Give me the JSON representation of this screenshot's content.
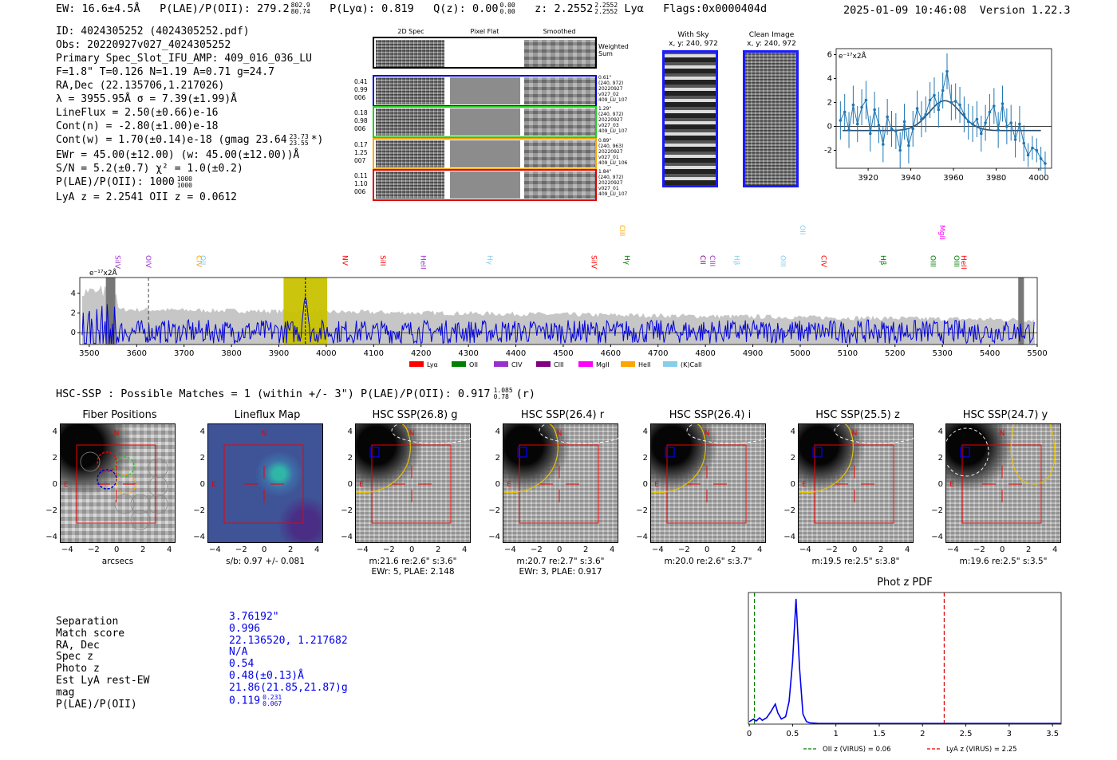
{
  "header": {
    "ew": "EW: 16.6±4.5Å",
    "plae_label": "P(LAE)/P(OII): 279.2",
    "plae_hi": "802.9",
    "plae_lo": "80.74",
    "plya": "P(Lyα): 0.819",
    "qz_label": "Q(z): 0.00",
    "qz_hi": "0.00",
    "qz_lo": "0.00",
    "z_label": "z: 2.2552",
    "z_hi": "2.2552",
    "z_lo": "2.2552",
    "z_line": "Lyα",
    "flags": "Flags:0x0000404d",
    "datetime": "2025-01-09 10:46:08",
    "version": "Version 1.22.3"
  },
  "info": {
    "id": "ID: 4024305252 (4024305252.pdf)",
    "obs": "Obs: 20220927v027_4024305252",
    "primary": "Primary Spec_Slot_IFU_AMP: 409_016_036_LU",
    "fit": "F=1.8\"  T=0.126  N=1.19  A=0.71  g=24.7",
    "radec": "RA,Dec (22.135706,1.217026)",
    "lambda": "λ = 3955.95Å  σ = 7.39(±1.99)Å",
    "lineflux": "LineFlux = 2.50(±0.66)e-16",
    "contn": "Cont(n) = -2.80(±1.00)e-18",
    "contw": "Cont(w) = 1.70(±0.14)e-18 (gmag 23.64",
    "contw_hi": "23.73",
    "contw_lo": "23.55",
    "contw_end": "*)",
    "ewr": "EWr = 45.00(±12.00) (w: 45.00(±12.00))Å",
    "sn": "S/N = 5.2(±0.7)  χ² = 1.0(±0.2)",
    "plae": "P(LAE)/P(OII): 1000",
    "plae_hi": "1000",
    "plae_lo": "1000",
    "lyaz": "LyA z = 2.2541   OII z = 0.0612"
  },
  "spec2d": {
    "col_headers": [
      "2D Spec",
      "Pixel Flat",
      "Smoothed"
    ],
    "weighted": "Weighted Sum",
    "rows": [
      {
        "left": [
          "0.41",
          "0.99",
          "006"
        ],
        "right": [
          "0.61\"",
          "(240, 972)",
          "20220927",
          "v027_02",
          "409_LU_107"
        ],
        "color": "#0000cc"
      },
      {
        "left": [
          "0.18",
          "0.98",
          "006"
        ],
        "right": [
          "1.29\"",
          "(240, 972)",
          "20220927",
          "v027_03",
          "409_LU_107"
        ],
        "color": "#22cc22"
      },
      {
        "left": [
          "0.17",
          "1.25",
          "007"
        ],
        "right": [
          "0.89\"",
          "(240, 963)",
          "20220927",
          "v027_01",
          "409_LU_106"
        ],
        "color": "#ffa500"
      },
      {
        "left": [
          "0.11",
          "1.10",
          "006"
        ],
        "right": [
          "1.84\"",
          "(240, 972)",
          "20220927",
          "v027_01",
          "409_LU_107"
        ],
        "color": "#dd0000"
      }
    ]
  },
  "sky": {
    "with_sky": "With Sky",
    "with_sky_xy": "x, y: 240, 972",
    "clean": "Clean Image",
    "clean_xy": "x, y: 240, 972"
  },
  "zoom_chart": {
    "units": "e⁻¹⁷x2Å"
  },
  "full_spec": {
    "units": "e⁻¹⁷x2Å",
    "legend": [
      {
        "label": "Lyα",
        "color": "#ff0000"
      },
      {
        "label": "OII",
        "color": "#008000"
      },
      {
        "label": "CIV",
        "color": "#9932cc"
      },
      {
        "label": "CIII",
        "color": "#800080"
      },
      {
        "label": "MgII",
        "color": "#ff00ff"
      },
      {
        "label": "HeII",
        "color": "#ffa500"
      },
      {
        "label": "(K)CaII",
        "color": "#87ceeb"
      }
    ]
  },
  "hsc": {
    "title": "HSC-SSP : Possible Matches = 1 (within +/- 3\")  P(LAE)/P(OII): 0.917",
    "title_hi": "1.085",
    "title_lo": "0.78",
    "title_end": "(r)",
    "panels": [
      {
        "title": "Fiber Positions",
        "cap1": "arcsecs",
        "cap2": ""
      },
      {
        "title": "Lineflux Map",
        "cap1": "s/b: 0.97 +/- 0.081",
        "cap2": ""
      },
      {
        "title": "HSC SSP(26.8) g",
        "cap1": "m:21.6  re:2.6\"  s:3.6\"",
        "cap2": "EWr: 5, PLAE: 2.148"
      },
      {
        "title": "HSC SSP(26.4) r",
        "cap1": "m:20.7  re:2.7\"  s:3.6\"",
        "cap2": "EWr: 3, PLAE: 0.917"
      },
      {
        "title": "HSC SSP(26.4) i",
        "cap1": "m:20.0  re:2.6\"  s:3.7\"",
        "cap2": ""
      },
      {
        "title": "HSC SSP(25.5) z",
        "cap1": "m:19.5  re:2.5\"  s:3.8\"",
        "cap2": ""
      },
      {
        "title": "HSC SSP(24.7) y",
        "cap1": "m:19.6  re:2.5\"  s:3.5\"",
        "cap2": ""
      }
    ],
    "compass_n": "N",
    "compass_e": "E"
  },
  "match": {
    "labels": [
      "Separation",
      "Match score",
      "RA, Dec",
      "Spec z",
      "Photo z",
      "Est LyA rest-EW",
      "mag",
      "P(LAE)/P(OII)"
    ],
    "values": [
      "3.76192\"",
      "0.996",
      "22.136520, 1.217682",
      "N/A",
      "0.54",
      "0.48(±0.13)Å",
      "21.86(21.85,21.87)g",
      "0.119"
    ],
    "plae_hi": "0.231",
    "plae_lo": "0.067"
  },
  "chart_data": [
    {
      "id": "zoom",
      "type": "scatter",
      "title": "",
      "ylabel": "e⁻¹⁷x2Å",
      "xlim": [
        3905,
        4006
      ],
      "ylim": [
        -3.5,
        6.5
      ],
      "xticks": [
        3920,
        3940,
        3960,
        3980,
        4000
      ],
      "yticks": [
        -2,
        0,
        2,
        4,
        6
      ],
      "x": [
        3907,
        3909,
        3911,
        3913,
        3915,
        3917,
        3919,
        3921,
        3923,
        3925,
        3927,
        3929,
        3931,
        3933,
        3935,
        3937,
        3939,
        3941,
        3943,
        3945,
        3947,
        3949,
        3951,
        3953,
        3955,
        3957,
        3959,
        3961,
        3963,
        3965,
        3967,
        3969,
        3971,
        3973,
        3975,
        3977,
        3979,
        3981,
        3983,
        3985,
        3987,
        3989,
        3991,
        3993,
        3995,
        3997,
        3999,
        4001,
        4003
      ],
      "y": [
        0.5,
        1.2,
        -0.3,
        1.8,
        0.2,
        1.6,
        2.2,
        -0.6,
        1.4,
        0.1,
        -1.5,
        0.8,
        -0.2,
        -0.4,
        -2.0,
        0.4,
        -1.6,
        -0.2,
        1.5,
        0.6,
        1.0,
        2.2,
        2.6,
        1.4,
        3.0,
        4.6,
        2.0,
        2.1,
        1.8,
        1.0,
        0.4,
        0.2,
        0.6,
        -0.6,
        0.3,
        1.2,
        1.7,
        -0.3,
        1.9,
        0.0,
        0.3,
        -1.1,
        0.2,
        -1.4,
        -2.4,
        -1.8,
        -2.0,
        -2.7,
        -3.1
      ],
      "err": [
        1.6,
        1.5,
        1.5,
        1.6,
        1.5,
        1.5,
        1.6,
        1.5,
        1.5,
        1.5,
        1.5,
        1.5,
        1.5,
        1.5,
        1.5,
        1.5,
        1.5,
        1.5,
        1.5,
        1.5,
        1.5,
        1.5,
        1.5,
        1.5,
        1.5,
        1.5,
        1.5,
        1.5,
        1.5,
        1.5,
        1.5,
        1.5,
        1.5,
        1.5,
        1.5,
        1.5,
        1.5,
        1.5,
        1.5,
        1.5,
        1.5,
        1.5,
        1.5,
        1.5,
        1.0,
        1.0,
        1.0,
        1.0,
        1.0
      ],
      "fit": {
        "center": 3955.95,
        "sigma": 7.39,
        "amp": 2.5,
        "baseline": -0.35
      }
    },
    {
      "id": "full",
      "type": "line",
      "xlim": [
        3480,
        5500
      ],
      "ylim": [
        -1.2,
        5.6
      ],
      "xticks": [
        3500,
        3600,
        3700,
        3800,
        3900,
        4000,
        4100,
        4200,
        4300,
        4400,
        4500,
        4600,
        4700,
        4800,
        4900,
        5000,
        5100,
        5200,
        5300,
        5400,
        5500
      ],
      "yticks": [
        0,
        2,
        4
      ],
      "highlight": [
        3910,
        4002
      ],
      "line_center": 3956,
      "dashed": 3625,
      "emission_lines": [
        {
          "label": "SiIV",
          "x": 3555,
          "color": "#9932cc"
        },
        {
          "label": "OIV",
          "x": 3620,
          "color": "#9932cc"
        },
        {
          "label": "CIV",
          "x": 3727,
          "color": "#ffa500"
        },
        {
          "label": "OII",
          "x": 3735,
          "color": "#87ceeb"
        },
        {
          "label": "NV",
          "x": 4035,
          "color": "#ff0000"
        },
        {
          "label": "SiII",
          "x": 4115,
          "color": "#ff0000"
        },
        {
          "label": "HeII",
          "x": 4200,
          "color": "#9932cc"
        },
        {
          "label": "Hγ",
          "x": 4340,
          "color": "#87ceeb"
        },
        {
          "label": "SiIV",
          "x": 4560,
          "color": "#ff0000"
        },
        {
          "label": "CIII",
          "x": 4620,
          "color": "#ffa500"
        },
        {
          "label": "Hγ",
          "x": 4630,
          "color": "#008000"
        },
        {
          "label": "CII",
          "x": 4790,
          "color": "#800080"
        },
        {
          "label": "CIII",
          "x": 4810,
          "color": "#9932cc"
        },
        {
          "label": "Hβ",
          "x": 4861,
          "color": "#87ceeb"
        },
        {
          "label": "OIII",
          "x": 4959,
          "color": "#87ceeb"
        },
        {
          "label": "OII",
          "x": 5000,
          "color": "#87ceeb"
        },
        {
          "label": "CIV",
          "x": 5045,
          "color": "#ff0000"
        },
        {
          "label": "Hβ",
          "x": 5170,
          "color": "#008000"
        },
        {
          "label": "OIII",
          "x": 5275,
          "color": "#008000"
        },
        {
          "label": "MgII",
          "x": 5295,
          "color": "#ff00ff"
        },
        {
          "label": "OIII",
          "x": 5325,
          "color": "#008000"
        },
        {
          "label": "HeII",
          "x": 5340,
          "color": "#ff0000"
        }
      ]
    },
    {
      "id": "photz",
      "type": "line",
      "title": "Phot z PDF",
      "xlim": [
        -0.01,
        3.6
      ],
      "ylim": [
        0,
        1.05
      ],
      "xticks": [
        0.0,
        0.5,
        1.0,
        1.5,
        2.0,
        2.5,
        3.0,
        3.5
      ],
      "x": [
        0.0,
        0.05,
        0.08,
        0.12,
        0.15,
        0.2,
        0.25,
        0.3,
        0.33,
        0.37,
        0.42,
        0.46,
        0.5,
        0.54,
        0.58,
        0.62,
        0.66,
        0.7,
        0.8,
        1.0,
        1.5,
        2.0,
        2.5,
        3.0,
        3.6
      ],
      "y": [
        0.02,
        0.04,
        0.025,
        0.05,
        0.03,
        0.05,
        0.1,
        0.16,
        0.09,
        0.04,
        0.06,
        0.18,
        0.5,
        1.0,
        0.45,
        0.08,
        0.02,
        0.01,
        0.005,
        0.005,
        0.005,
        0.005,
        0.005,
        0.005,
        0.005
      ],
      "vlines": [
        {
          "x": 0.06,
          "color": "#008000",
          "label": "OII z (VIRUS) = 0.06"
        },
        {
          "x": 2.25,
          "color": "#dd0000",
          "label": "LyA z (VIRUS) = 2.25"
        }
      ]
    }
  ]
}
